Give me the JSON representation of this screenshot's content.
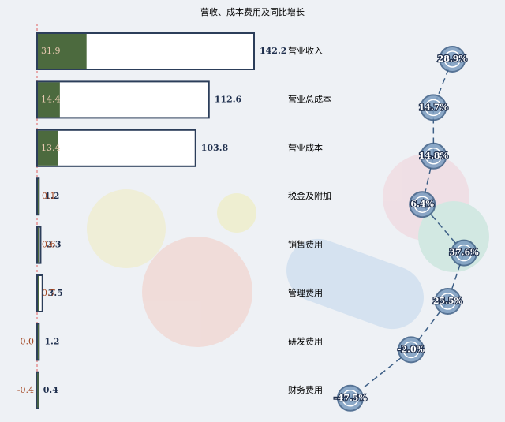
{
  "chart_data": {
    "type": "bar",
    "title": "营收、成本费用及同比增长",
    "categories": [
      "营业收入",
      "营业总成本",
      "营业成本",
      "税金及附加",
      "销售费用",
      "管理费用",
      "研发费用",
      "财务费用"
    ],
    "series": [
      {
        "type": "bar",
        "color": "#ffffff",
        "stroke": "#2c3e5a",
        "values": [
          142.2,
          112.6,
          103.8,
          1.2,
          2.3,
          3.5,
          1.2,
          0.4
        ]
      },
      {
        "type": "bar",
        "color": "#4c6a3e",
        "values": [
          31.9,
          14.4,
          13.4,
          0.1,
          0.6,
          0.7,
          -0.02,
          -0.4
        ],
        "value_labels": [
          "31.9",
          "14.4",
          "13.4",
          "0.1",
          "0.6",
          "0.7",
          "-0.0",
          "-0.4"
        ]
      },
      {
        "type": "line",
        "color": "#3d5f86",
        "values": [
          28.9,
          14.7,
          14.8,
          6.4,
          37.6,
          25.5,
          -2.0,
          -47.5
        ],
        "value_labels": [
          "28.9%",
          "14.7%",
          "14.8%",
          "6.4%",
          "37.6%",
          "25.5%",
          "-2.0%",
          "-47.5%"
        ]
      }
    ]
  }
}
